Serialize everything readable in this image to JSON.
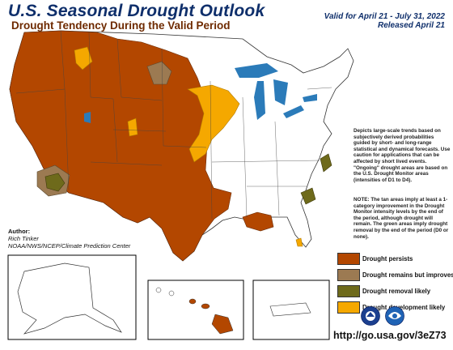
{
  "header": {
    "title": "U.S. Seasonal Drought Outlook",
    "subtitle": "Drought Tendency During the Valid Period",
    "valid_line": "Valid for April 21 - July 31, 2022",
    "released_line": "Released April 21"
  },
  "description": "Depicts large-scale trends based on subjectively derived probabilities guided by short- and long-range statistical and dynamical forecasts. Use caution for applications that can be affected by short lived events. \"Ongoing\" drought areas are based on the U.S. Drought Monitor areas (intensities of D1 to D4).",
  "note": "NOTE: The tan areas imply at least a 1-category improvement in the Drought Monitor intensity levels by the end of the period, although drought will remain. The green areas imply drought removal by the end of the period (D0 or none).",
  "author": {
    "label": "Author:",
    "name": "Rich Tinker",
    "org": "NOAA/NWS/NCEP/Climate Prediction Center"
  },
  "legend": [
    {
      "label": "Drought persists",
      "color": "#b34700"
    },
    {
      "label": "Drought remains but improves",
      "color": "#9c7a52"
    },
    {
      "label": "Drought removal likely",
      "color": "#6e6a1b"
    },
    {
      "label": "Drought development likely",
      "color": "#f5a800"
    }
  ],
  "url": "http://go.usa.gov/3eZ73",
  "colors": {
    "persists": "#b34700",
    "improves": "#9c7a52",
    "removal": "#6e6a1b",
    "development": "#f5a800",
    "water": "#2b7bb9",
    "title": "#0f2f6b"
  },
  "icons": [
    "noaa-logo-icon",
    "nws-logo-icon"
  ]
}
